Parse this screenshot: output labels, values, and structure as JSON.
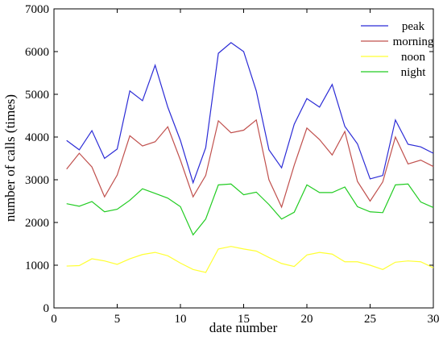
{
  "chart_data": {
    "type": "line",
    "xlabel": "date number",
    "ylabel": "number of calls (times)",
    "xlim": [
      0,
      30
    ],
    "ylim": [
      0,
      7000
    ],
    "xticks": [
      0,
      5,
      10,
      15,
      20,
      25,
      30
    ],
    "yticks": [
      0,
      1000,
      2000,
      3000,
      4000,
      5000,
      6000,
      7000
    ],
    "grid": false,
    "legend_position": "top-right",
    "x": [
      1,
      2,
      3,
      4,
      5,
      6,
      7,
      8,
      9,
      10,
      11,
      12,
      13,
      14,
      15,
      16,
      17,
      18,
      19,
      20,
      21,
      22,
      23,
      24,
      25,
      26,
      27,
      28,
      29,
      30
    ],
    "series": [
      {
        "name": "peak",
        "color": "#2b2bd6",
        "values": [
          3920,
          3700,
          4150,
          3500,
          3720,
          5080,
          4850,
          5680,
          4700,
          3920,
          2930,
          3750,
          5960,
          6210,
          6000,
          5080,
          3700,
          3280,
          4300,
          4900,
          4700,
          5230,
          4250,
          3840,
          3020,
          3100,
          4400,
          3830,
          3770,
          3620
        ]
      },
      {
        "name": "morning",
        "color": "#c0504d",
        "values": [
          3250,
          3620,
          3300,
          2600,
          3110,
          4030,
          3790,
          3890,
          4240,
          3460,
          2600,
          3100,
          4380,
          4100,
          4160,
          4400,
          3000,
          2360,
          3340,
          4210,
          3940,
          3580,
          4130,
          2960,
          2500,
          2950,
          4000,
          3370,
          3460,
          3310
        ]
      },
      {
        "name": "noon",
        "color": "#ffff33",
        "values": [
          980,
          990,
          1150,
          1100,
          1020,
          1150,
          1250,
          1300,
          1220,
          1050,
          900,
          830,
          1380,
          1440,
          1380,
          1330,
          1180,
          1040,
          970,
          1240,
          1300,
          1260,
          1080,
          1080,
          1000,
          900,
          1070,
          1100,
          1080,
          940
        ]
      },
      {
        "name": "night",
        "color": "#22cc22",
        "values": [
          2440,
          2380,
          2490,
          2250,
          2310,
          2520,
          2790,
          2680,
          2570,
          2370,
          1710,
          2080,
          2880,
          2900,
          2650,
          2710,
          2420,
          2080,
          2240,
          2880,
          2700,
          2700,
          2830,
          2370,
          2250,
          2230,
          2880,
          2900,
          2480,
          2350
        ]
      }
    ]
  }
}
